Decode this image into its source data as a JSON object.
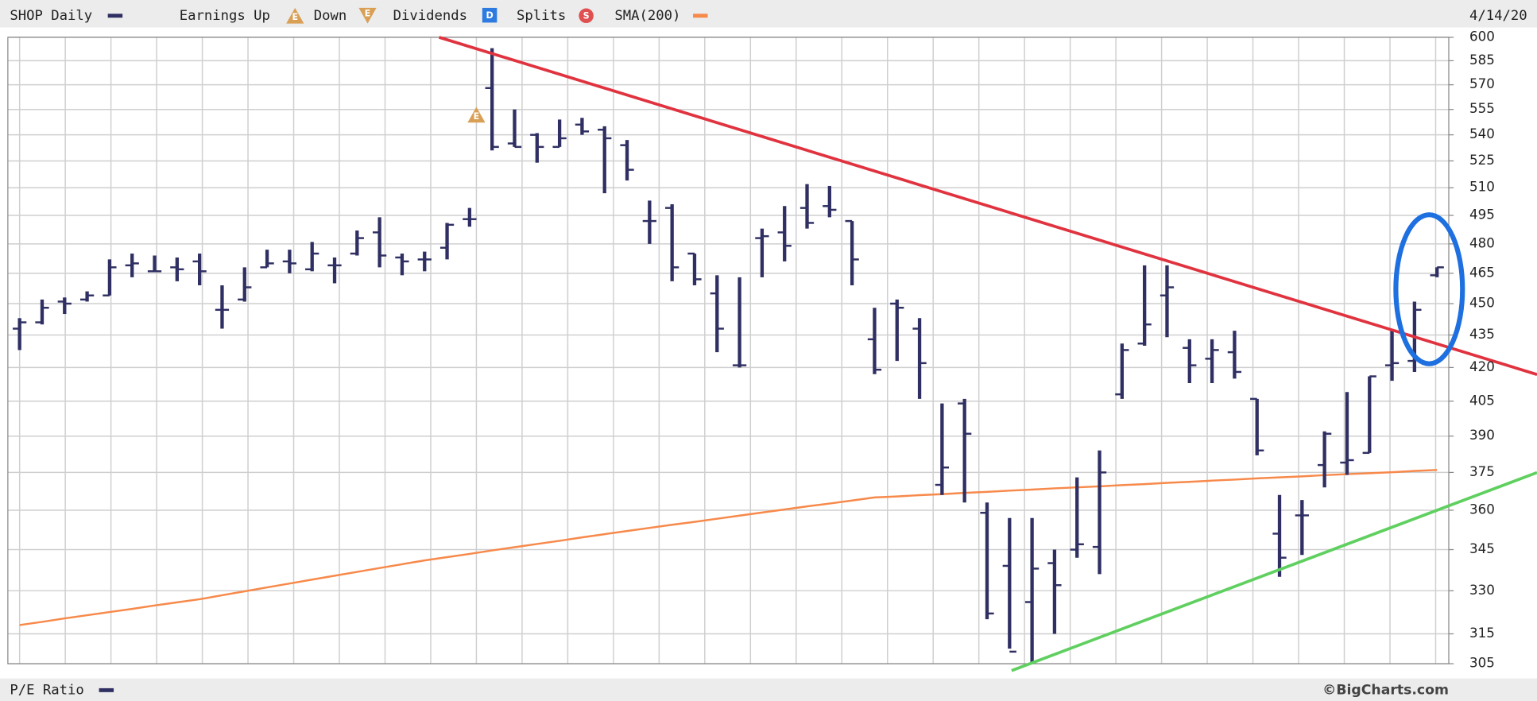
{
  "chart_data": {
    "type": "ohlc",
    "date": "4/14/20",
    "lower_panel": "P/E Ratio",
    "source": "©BigCharts.com",
    "earnings_label": "E",
    "legend_items": [
      {
        "label": "Earnings Up",
        "icon": "E"
      },
      {
        "label": "Down",
        "icon": "E"
      },
      {
        "label": "Dividends",
        "icon": "D"
      },
      {
        "label": "Splits",
        "icon": "S"
      }
    ],
    "log_scale": true,
    "grid": true,
    "ylim": [
      305,
      600
    ],
    "yticks": [
      600,
      585,
      570,
      555,
      540,
      525,
      510,
      495,
      480,
      465,
      450,
      435,
      420,
      405,
      390,
      375,
      360,
      345,
      330,
      315,
      305
    ],
    "series": [
      {
        "name": "SHOP Daily",
        "color": "#2f2f63",
        "open": [
          438,
          441,
          451,
          452,
          454,
          469,
          466,
          468,
          471,
          447,
          452,
          468,
          471,
          467,
          469,
          475,
          486,
          473,
          472,
          478,
          493,
          568,
          535,
          540,
          533,
          546,
          543,
          534,
          492,
          499,
          475,
          455,
          421,
          483,
          486,
          499,
          500,
          492,
          433,
          450,
          438,
          370,
          404,
          359,
          339,
          326,
          340,
          345,
          346,
          408,
          431,
          454,
          429,
          424,
          427,
          406,
          351,
          358,
          378,
          379,
          383,
          421,
          423,
          464
        ],
        "high": [
          443,
          452,
          453,
          456,
          472,
          475,
          474,
          473,
          475,
          459,
          468,
          477,
          477,
          481,
          473,
          487,
          494,
          475,
          476,
          491,
          499,
          593,
          555,
          541,
          549,
          550,
          545,
          537,
          503,
          501,
          475,
          464,
          463,
          488,
          500,
          512,
          511,
          492,
          448,
          452,
          443,
          404,
          406,
          363,
          357,
          357,
          345,
          373,
          384,
          431,
          469,
          469,
          433,
          433,
          437,
          406,
          366,
          364,
          392,
          409,
          416,
          437,
          451,
          468
        ],
        "low": [
          428,
          440,
          445,
          451,
          454,
          463,
          466,
          461,
          459,
          438,
          451,
          468,
          465,
          466,
          460,
          474,
          468,
          464,
          466,
          472,
          489,
          531,
          533,
          524,
          533,
          540,
          507,
          514,
          480,
          461,
          459,
          427,
          420,
          463,
          471,
          488,
          494,
          459,
          417,
          423,
          406,
          366,
          363,
          320,
          310,
          305,
          315,
          342,
          336,
          406,
          430,
          434,
          413,
          413,
          415,
          382,
          335,
          343,
          369,
          374,
          383,
          414,
          418,
          463
        ],
        "close": [
          441,
          448,
          450,
          454,
          468,
          470,
          466,
          467,
          466,
          447,
          458,
          470,
          470,
          475,
          469,
          483,
          474,
          471,
          472,
          490,
          493,
          533,
          533,
          533,
          538,
          542,
          538,
          520,
          492,
          468,
          462,
          438,
          421,
          484,
          479,
          491,
          498,
          472,
          419,
          448,
          422,
          377,
          391,
          322,
          309,
          338,
          332,
          347,
          375,
          428,
          440,
          458,
          421,
          428,
          418,
          384,
          342,
          358,
          391,
          380,
          416,
          422,
          447,
          468
        ]
      },
      {
        "name": "SMA(200)",
        "color": "#f7894a",
        "values": [
          318,
          319.1,
          320.3,
          321.4,
          322.5,
          323.6,
          324.8,
          325.9,
          327,
          328.4,
          329.8,
          331.2,
          332.6,
          334,
          335.4,
          336.8,
          338.2,
          339.6,
          341,
          342.2,
          343.4,
          344.7,
          345.9,
          347.1,
          348.3,
          349.6,
          350.8,
          352,
          353.2,
          354.4,
          355.5,
          356.7,
          357.9,
          359.1,
          360.3,
          361.5,
          362.6,
          363.8,
          365,
          365.4,
          365.9,
          366.3,
          366.8,
          367.2,
          367.7,
          368.1,
          368.6,
          369,
          369.4,
          369.9,
          370.3,
          370.8,
          371.2,
          371.7,
          372.1,
          372.6,
          373,
          373.4,
          373.9,
          374.3,
          374.7,
          375.1,
          375.6,
          376
        ]
      }
    ]
  }
}
